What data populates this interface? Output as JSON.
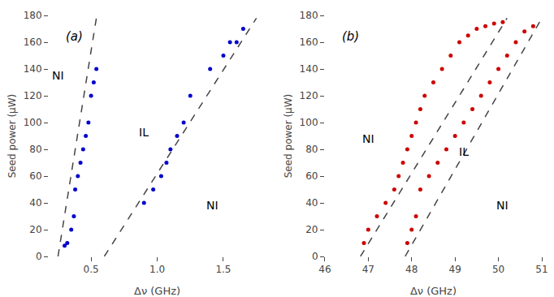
{
  "chart_data": [
    {
      "type": "scatter",
      "xlabel": "Δν (GHz)",
      "ylabel": "Seed power (μW)",
      "xlim": [
        0.18,
        1.82
      ],
      "ylim": [
        0,
        180
      ],
      "xticks": [
        {
          "value": 0.5,
          "label": "0.5"
        },
        {
          "value": 1.0,
          "label": "1.0"
        },
        {
          "value": 1.5,
          "label": "1.5"
        }
      ],
      "yticks": [
        0,
        20,
        40,
        60,
        80,
        100,
        120,
        140,
        160,
        180
      ],
      "grid": false,
      "series": [
        {
          "type": "scatter",
          "color": "#0000cc",
          "x": [
            0.3,
            0.32,
            0.35,
            0.37,
            0.38,
            0.4,
            0.42,
            0.44,
            0.46,
            0.48,
            0.5,
            0.52,
            0.54,
            0.9,
            0.97,
            1.03,
            1.07,
            1.1,
            1.15,
            1.2,
            1.25,
            1.4,
            1.5,
            1.55,
            1.6,
            1.65
          ],
          "values": [
            8,
            10,
            20,
            30,
            50,
            60,
            70,
            80,
            90,
            100,
            120,
            130,
            140,
            40,
            50,
            60,
            70,
            80,
            90,
            100,
            120,
            140,
            150,
            160,
            160,
            170
          ]
        },
        {
          "type": "line",
          "line_style": "dashed",
          "color": "#444444",
          "x": [
            0.25,
            0.54
          ],
          "values": [
            0,
            178
          ]
        },
        {
          "type": "line",
          "line_style": "dashed",
          "color": "#444444",
          "x": [
            0.6,
            1.75
          ],
          "values": [
            0,
            178
          ]
        }
      ],
      "annotations": [
        {
          "text": "NI",
          "x": 0.25,
          "y": 135
        },
        {
          "text": "NI",
          "x": 1.42,
          "y": 38
        },
        {
          "text": "IL",
          "x": 0.9,
          "y": 93
        },
        {
          "text": "(a)"
        }
      ]
    },
    {
      "type": "scatter",
      "xlabel": "Δν (GHz)",
      "ylabel": "Seed power (μW)",
      "xlim": [
        46,
        51
      ],
      "ylim": [
        0,
        180
      ],
      "xticks": [
        46,
        47,
        48,
        49,
        50,
        51
      ],
      "yticks": [
        0,
        20,
        40,
        60,
        80,
        100,
        120,
        140,
        160,
        180
      ],
      "grid": false,
      "series": [
        {
          "type": "scatter",
          "color": "#cc0000",
          "x": [
            46.9,
            47.0,
            47.2,
            47.4,
            47.6,
            47.7,
            47.8,
            47.9,
            48.0,
            48.1,
            48.2,
            48.3,
            48.5,
            48.7,
            48.9,
            49.1,
            49.3,
            49.5,
            49.7,
            49.9,
            50.1,
            47.9,
            48.0,
            48.1,
            48.2,
            48.4,
            48.6,
            48.8,
            49.0,
            49.2,
            49.4,
            49.6,
            49.8,
            50.0,
            50.2,
            50.4,
            50.6,
            50.8
          ],
          "values": [
            10,
            20,
            30,
            40,
            50,
            60,
            70,
            80,
            90,
            100,
            110,
            120,
            130,
            140,
            150,
            160,
            165,
            170,
            172,
            174,
            175,
            10,
            20,
            30,
            50,
            60,
            70,
            80,
            90,
            100,
            110,
            120,
            130,
            140,
            150,
            160,
            168,
            172
          ]
        },
        {
          "type": "line",
          "line_style": "dashed",
          "color": "#444444",
          "x": [
            46.82,
            50.2
          ],
          "values": [
            0,
            178
          ]
        },
        {
          "type": "line",
          "line_style": "dashed",
          "color": "#444444",
          "x": [
            47.85,
            51.0
          ],
          "values": [
            0,
            178
          ]
        }
      ],
      "annotations": [
        {
          "text": "NI",
          "x": 47.0,
          "y": 88
        },
        {
          "text": "NI",
          "x": 50.1,
          "y": 38
        },
        {
          "text": "IL",
          "x": 49.2,
          "y": 78
        },
        {
          "text": "(b)"
        }
      ]
    }
  ]
}
